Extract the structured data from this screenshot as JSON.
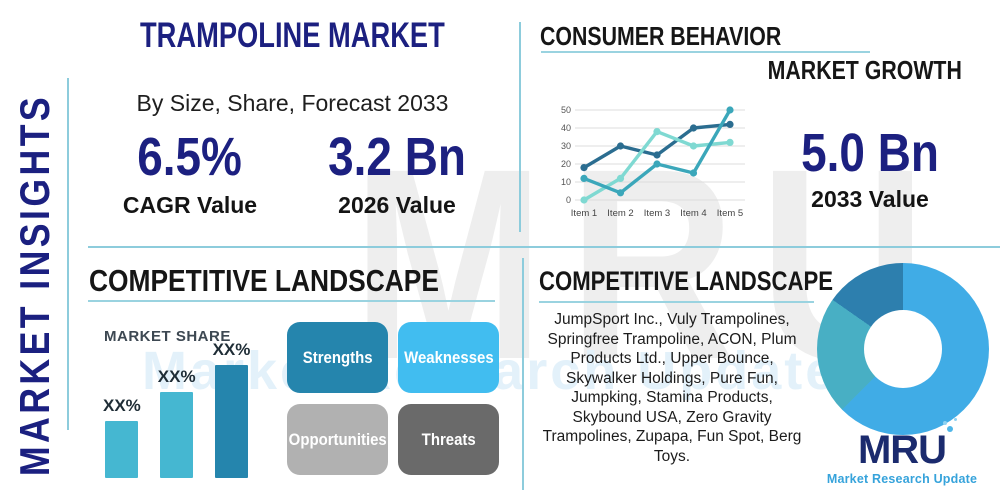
{
  "brand": {
    "watermark_text": "MRU",
    "watermark_sub": "Market Research Update",
    "logo_text": "MRU",
    "logo_subtitle": "Market Research Update"
  },
  "left_rail": {
    "label": "MARKET INSIGHTS"
  },
  "header": {
    "title": "TRAMPOLINE MARKET",
    "subtitle": "By Size, Share, Forecast 2033"
  },
  "stats": {
    "cagr": {
      "value": "6.5%",
      "label": "CAGR Value"
    },
    "base": {
      "value": "3.2 Bn",
      "label": "2026 Value"
    },
    "forecast": {
      "value": "5.0 Bn",
      "label": "2033 Value"
    }
  },
  "consumer_behavior": {
    "heading": "CONSUMER BEHAVIOR",
    "subheading": "MARKET GROWTH"
  },
  "competitive_left": {
    "heading": "COMPETITIVE LANDSCAPE",
    "chart_label": "MARKET SHARE",
    "swot": [
      {
        "label": "Strengths",
        "color": "#2585ad"
      },
      {
        "label": "Weaknesses",
        "color": "#41bdf0"
      },
      {
        "label": "Opportunities",
        "color": "#b1b1b1"
      },
      {
        "label": "Threats",
        "color": "#6a6a6a"
      }
    ]
  },
  "competitive_right": {
    "heading": "COMPETITIVE LANDSCAPE",
    "companies": "JumpSport Inc., Vuly Trampolines, Springfree Trampoline, ACON, Plum Products Ltd., Upper Bounce, Skywalker Holdings, Pure Fun, Jumpking, Stamina Products, Skybound USA, Zero Gravity Trampolines, Zupapa, Fun Spot, Berg Toys."
  },
  "chart_data": [
    {
      "id": "consumer-line",
      "type": "line",
      "title": "CONSUMER BEHAVIOR",
      "x": [
        "Item 1",
        "Item 2",
        "Item 3",
        "Item 4",
        "Item 5"
      ],
      "series": [
        {
          "name": "series-dark-blue",
          "color": "#2b6d90",
          "values": [
            18,
            30,
            25,
            40,
            42
          ]
        },
        {
          "name": "series-light-cyan",
          "color": "#7fd9d2",
          "values": [
            0,
            12,
            38,
            30,
            32
          ]
        },
        {
          "name": "series-teal",
          "color": "#3ba7ba",
          "values": [
            12,
            4,
            20,
            15,
            50
          ]
        }
      ],
      "ylim": [
        0,
        50
      ],
      "yticks": [
        0,
        10,
        20,
        30,
        40,
        50
      ],
      "grid": true,
      "legend": "none"
    },
    {
      "id": "market-share-bar",
      "type": "bar",
      "title": "MARKET SHARE",
      "categories": [
        "XX%",
        "XX%",
        "XX%"
      ],
      "values": [
        25,
        38,
        50
      ],
      "colors": [
        "#45b7d1",
        "#45b7d1",
        "#2585ad"
      ],
      "ylim": [
        0,
        50
      ]
    },
    {
      "id": "company-donut",
      "type": "pie",
      "values": [
        62.5,
        22.2,
        15.3
      ],
      "colors": [
        "#40ace6",
        "#48afc4",
        "#2d7fae"
      ],
      "labels": [
        "segment-light-blue",
        "segment-teal",
        "segment-dark-blue"
      ]
    }
  ]
}
